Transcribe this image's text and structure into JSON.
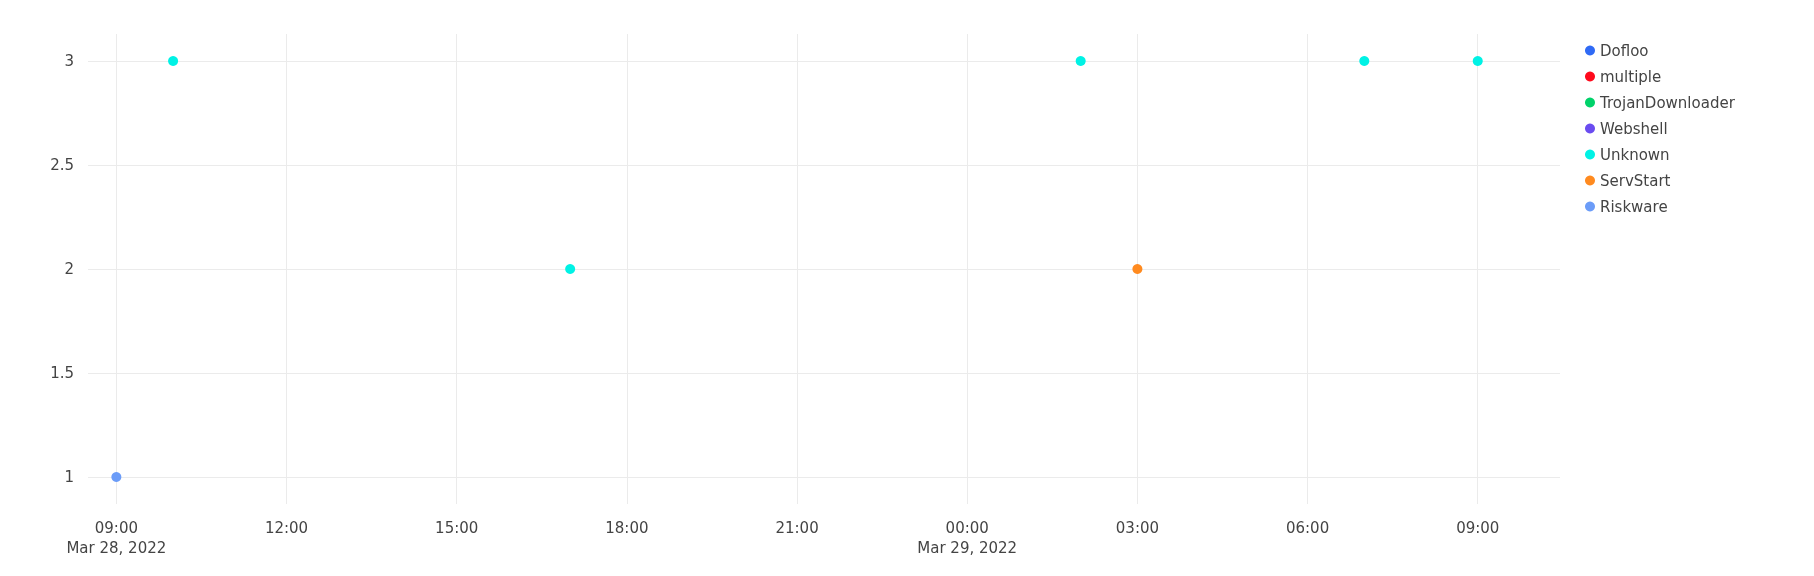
{
  "chart_data": {
    "type": "scatter",
    "xlim": [
      "2022-03-28T08:30",
      "2022-03-29T10:27"
    ],
    "xticks": [
      {
        "value": "2022-03-28T09:00",
        "label": "09:00\nMar 28, 2022"
      },
      {
        "value": "2022-03-28T12:00",
        "label": "12:00"
      },
      {
        "value": "2022-03-28T15:00",
        "label": "15:00"
      },
      {
        "value": "2022-03-28T18:00",
        "label": "18:00"
      },
      {
        "value": "2022-03-28T21:00",
        "label": "21:00"
      },
      {
        "value": "2022-03-29T00:00",
        "label": "00:00\nMar 29, 2022"
      },
      {
        "value": "2022-03-29T03:00",
        "label": "03:00"
      },
      {
        "value": "2022-03-29T06:00",
        "label": "06:00"
      },
      {
        "value": "2022-03-29T09:00",
        "label": "09:00"
      }
    ],
    "ylim": [
      0.87,
      3.13
    ],
    "yticks": [
      1,
      1.5,
      2,
      2.5,
      3
    ],
    "grid": true,
    "legend": "top right",
    "marker": "circle",
    "series": [
      {
        "name": "Dofloo",
        "color": "#2f6af5"
      },
      {
        "name": "multiple",
        "color": "#ff0a1c"
      },
      {
        "name": "TrojanDownloader",
        "color": "#00d26a"
      },
      {
        "name": "Webshell",
        "color": "#6a4cf0"
      },
      {
        "name": "Unknown",
        "color": "#00f2e5",
        "x": [
          "2022-03-28T10:00",
          "2022-03-28T17:00",
          "2022-03-29T02:00",
          "2022-03-29T07:00",
          "2022-03-29T09:00"
        ],
        "values": [
          3,
          2,
          3,
          3,
          3
        ]
      },
      {
        "name": "ServStart",
        "color": "#ff8a1f",
        "x": [
          "2022-03-29T03:00"
        ],
        "values": [
          2
        ]
      },
      {
        "name": "Riskware",
        "color": "#6b9cf8",
        "x": [
          "2022-03-28T09:00"
        ],
        "values": [
          1
        ]
      }
    ]
  }
}
